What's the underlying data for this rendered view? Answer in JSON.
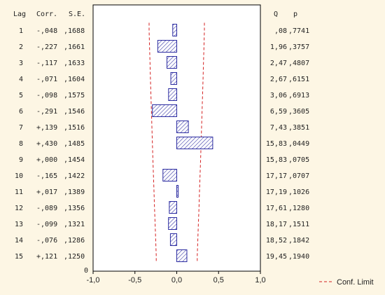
{
  "chart_data": {
    "type": "bar",
    "orientation": "horizontal",
    "headers": {
      "lag": "Lag",
      "corr": "Corr.",
      "se": "S.E.",
      "q": "Q",
      "p": "p"
    },
    "rows": [
      {
        "lag": "1",
        "corr_label": "-,048",
        "se": ",1688",
        "q": ",08",
        "p": ",7741",
        "corr": -0.048,
        "se_value": 0.1688
      },
      {
        "lag": "2",
        "corr_label": "-,227",
        "se": ",1661",
        "q": "1,96",
        "p": ",3757",
        "corr": -0.227,
        "se_value": 0.1661
      },
      {
        "lag": "3",
        "corr_label": "-,117",
        "se": ",1633",
        "q": "2,47",
        "p": ",4807",
        "corr": -0.117,
        "se_value": 0.1633
      },
      {
        "lag": "4",
        "corr_label": "-,071",
        "se": ",1604",
        "q": "2,67",
        "p": ",6151",
        "corr": -0.071,
        "se_value": 0.1604
      },
      {
        "lag": "5",
        "corr_label": "-,098",
        "se": ",1575",
        "q": "3,06",
        "p": ",6913",
        "corr": -0.098,
        "se_value": 0.1575
      },
      {
        "lag": "6",
        "corr_label": "-,291",
        "se": ",1546",
        "q": "6,59",
        "p": ",3605",
        "corr": -0.291,
        "se_value": 0.1546
      },
      {
        "lag": "7",
        "corr_label": "+,139",
        "se": ",1516",
        "q": "7,43",
        "p": ",3851",
        "corr": 0.139,
        "se_value": 0.1516
      },
      {
        "lag": "8",
        "corr_label": "+,430",
        "se": ",1485",
        "q": "15,83",
        "p": ",0449",
        "corr": 0.43,
        "se_value": 0.1485
      },
      {
        "lag": "9",
        "corr_label": "+,000",
        "se": ",1454",
        "q": "15,83",
        "p": ",0705",
        "corr": 0.0,
        "se_value": 0.1454
      },
      {
        "lag": "10",
        "corr_label": "-,165",
        "se": ",1422",
        "q": "17,17",
        "p": ",0707",
        "corr": -0.165,
        "se_value": 0.1422
      },
      {
        "lag": "11",
        "corr_label": "+,017",
        "se": ",1389",
        "q": "17,19",
        "p": ",1026",
        "corr": 0.017,
        "se_value": 0.1389
      },
      {
        "lag": "12",
        "corr_label": "-,089",
        "se": ",1356",
        "q": "17,61",
        "p": ",1280",
        "corr": -0.089,
        "se_value": 0.1356
      },
      {
        "lag": "13",
        "corr_label": "-,099",
        "se": ",1321",
        "q": "18,17",
        "p": ",1511",
        "corr": -0.099,
        "se_value": 0.1321
      },
      {
        "lag": "14",
        "corr_label": "-,076",
        "se": ",1286",
        "q": "18,52",
        "p": ",1842",
        "corr": -0.076,
        "se_value": 0.1286
      },
      {
        "lag": "15",
        "corr_label": "+,121",
        "se": ",1250",
        "q": "19,45",
        "p": ",1940",
        "corr": 0.121,
        "se_value": 0.125
      }
    ],
    "x_ticks": [
      "-1,0",
      "-0,5",
      "0,0",
      "0,5",
      "1,0"
    ],
    "x_tick_values": [
      -1.0,
      -0.5,
      0.0,
      0.5,
      1.0
    ],
    "xlim": [
      -1.0,
      1.0
    ],
    "zero_row_label": "0",
    "legend": {
      "label": "Conf. Limit",
      "placement": "bottom-right"
    },
    "confidence_multiplier": 1.96,
    "colors": {
      "bar_stroke": "#2a2aa0",
      "bar_hatch": "#2a2aa0",
      "bar_fill": "#ffffff",
      "conf_limit": "#d42020",
      "panel_background": "#fdf6e4",
      "plot_background": "#ffffff",
      "axis": "#000000"
    }
  }
}
